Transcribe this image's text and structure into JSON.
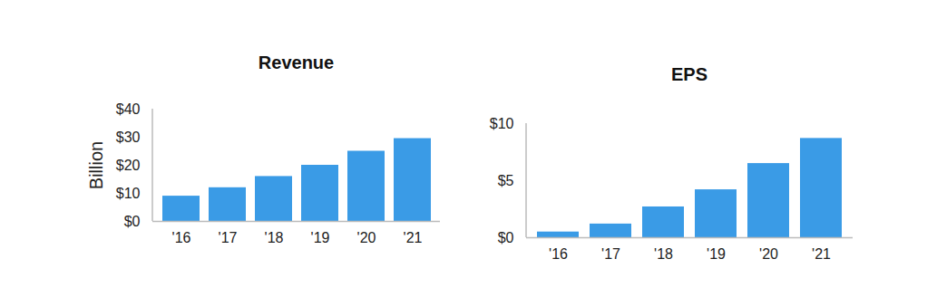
{
  "chart_data": [
    {
      "type": "bar",
      "title": "Revenue",
      "ylabel": "Billion",
      "categories": [
        "'16",
        "'17",
        "'18",
        "'19",
        "'20",
        "'21"
      ],
      "values": [
        9,
        12,
        16,
        20,
        25,
        29.5
      ],
      "color": "#3a9be6",
      "ylim": [
        0,
        40
      ],
      "yticks": [
        {
          "value": 0,
          "label": "$0"
        },
        {
          "value": 10,
          "label": "$10"
        },
        {
          "value": 20,
          "label": "$20"
        },
        {
          "value": 30,
          "label": "$30"
        },
        {
          "value": 40,
          "label": "$40"
        }
      ],
      "grid": false
    },
    {
      "type": "bar",
      "title": "EPS",
      "categories": [
        "'16",
        "'17",
        "'18",
        "'19",
        "'20",
        "'21"
      ],
      "values": [
        0.5,
        1.2,
        2.7,
        4.2,
        6.5,
        8.7
      ],
      "color": "#3a9be6",
      "ylim": [
        0,
        10
      ],
      "yticks": [
        {
          "value": 0,
          "label": "$0"
        },
        {
          "value": 5,
          "label": "$5"
        },
        {
          "value": 10,
          "label": "$10"
        }
      ],
      "grid": false
    }
  ]
}
